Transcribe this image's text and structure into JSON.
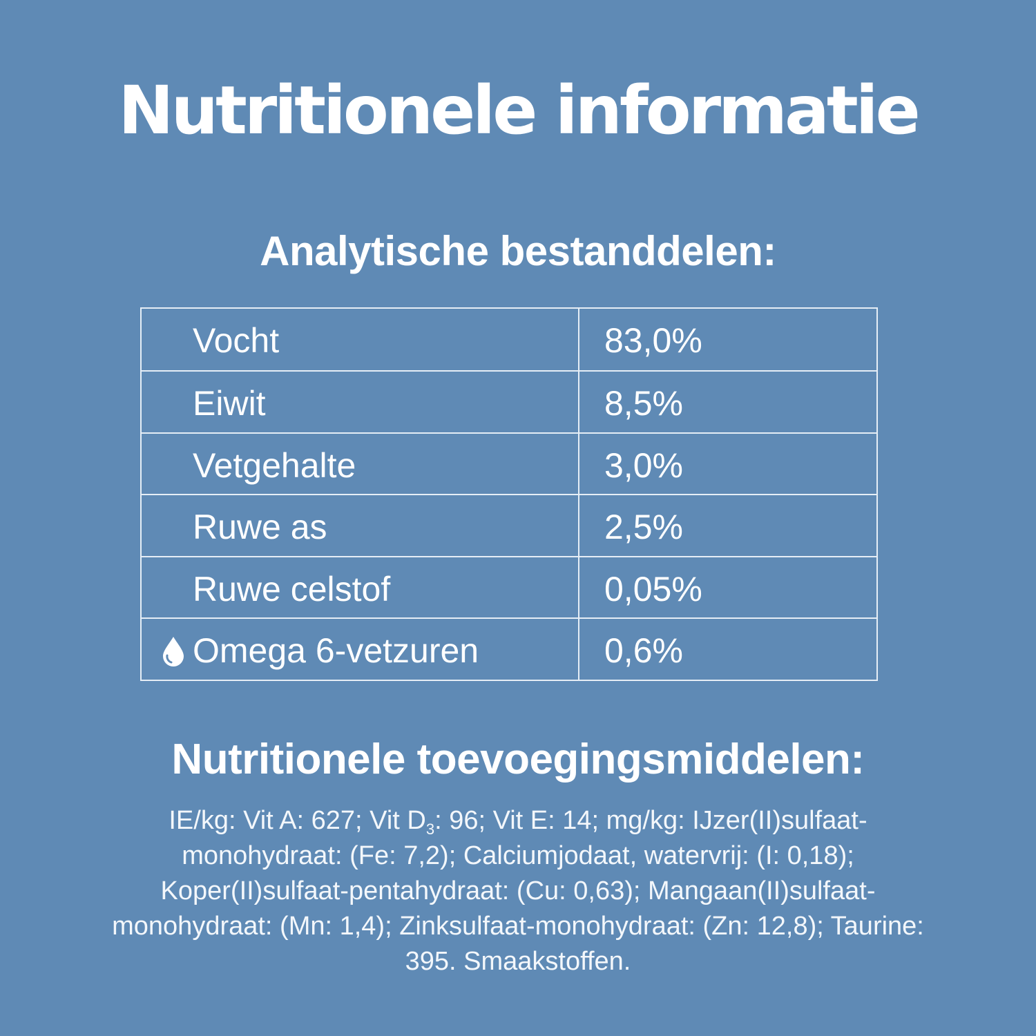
{
  "header": {
    "title": "Nutritionele informatie"
  },
  "analytic": {
    "heading": "Analytische bestanddelen:",
    "rows": [
      {
        "label": "Vocht",
        "value": "83,0%"
      },
      {
        "label": "Eiwit",
        "value": "8,5%"
      },
      {
        "label": "Vetgehalte",
        "value": "3,0%"
      },
      {
        "label": "Ruwe as",
        "value": "2,5%"
      },
      {
        "label": "Ruwe celstof",
        "value": "0,05%"
      },
      {
        "label": "Omega 6-vetzuren",
        "value": "0,6%",
        "icon": "water-drop-icon"
      }
    ]
  },
  "additives": {
    "heading": "Nutritionele toevoegingsmiddelen:",
    "text_part1": "IE/kg: Vit A: 627; Vit D",
    "subscript": "3",
    "text_part2": ": 96; Vit E: 14; mg/kg: IJzer(II)sulfaat-monohydraat: (Fe: 7,2); Calciumjodaat, watervrij: (I: 0,18); Koper(II)sulfaat-pentahydraat: (Cu: 0,63); Mangaan(II)sulfaat-monohydraat: (Mn: 1,4); Zinksulfaat-monohydraat: (Zn: 12,8); Taurine: 395. Smaakstoffen."
  },
  "colors": {
    "background": "#5f8ab5",
    "text": "#ffffff",
    "table_border": "#e6eef6"
  }
}
